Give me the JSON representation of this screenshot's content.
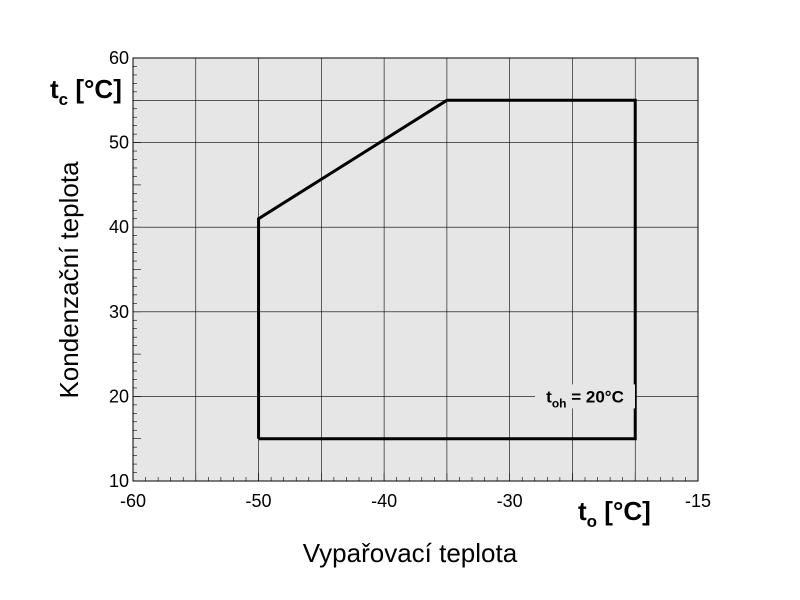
{
  "chart_data": {
    "type": "area",
    "xlabel": "Vypařovací teplota",
    "ylabel": "Kondenzační teplota",
    "x_unit": {
      "symbol": "t",
      "sub": "o",
      "unit": " [°C]"
    },
    "y_unit": {
      "symbol": "t",
      "sub": "c",
      "unit": " [°C]"
    },
    "xlim": [
      -60,
      -15
    ],
    "ylim": [
      10,
      60
    ],
    "x_ticks": [
      -60,
      -50,
      -40,
      -30,
      -15
    ],
    "y_ticks": [
      10,
      20,
      30,
      40,
      50,
      60
    ],
    "x_grid": [
      -55,
      -50,
      -45,
      -40,
      -35,
      -30,
      -25,
      -20
    ],
    "y_grid": [
      20,
      30,
      40,
      50,
      55
    ],
    "grid": true,
    "series": [
      {
        "x": [
          -50,
          -50,
          -35,
          -20,
          -20,
          -50
        ],
        "y": [
          15,
          41,
          55,
          55,
          15,
          15
        ]
      }
    ],
    "annotation": {
      "text_main": "t",
      "text_sub": "oh",
      "text_rest": " = 20°C",
      "x": -24,
      "y": 20
    }
  }
}
